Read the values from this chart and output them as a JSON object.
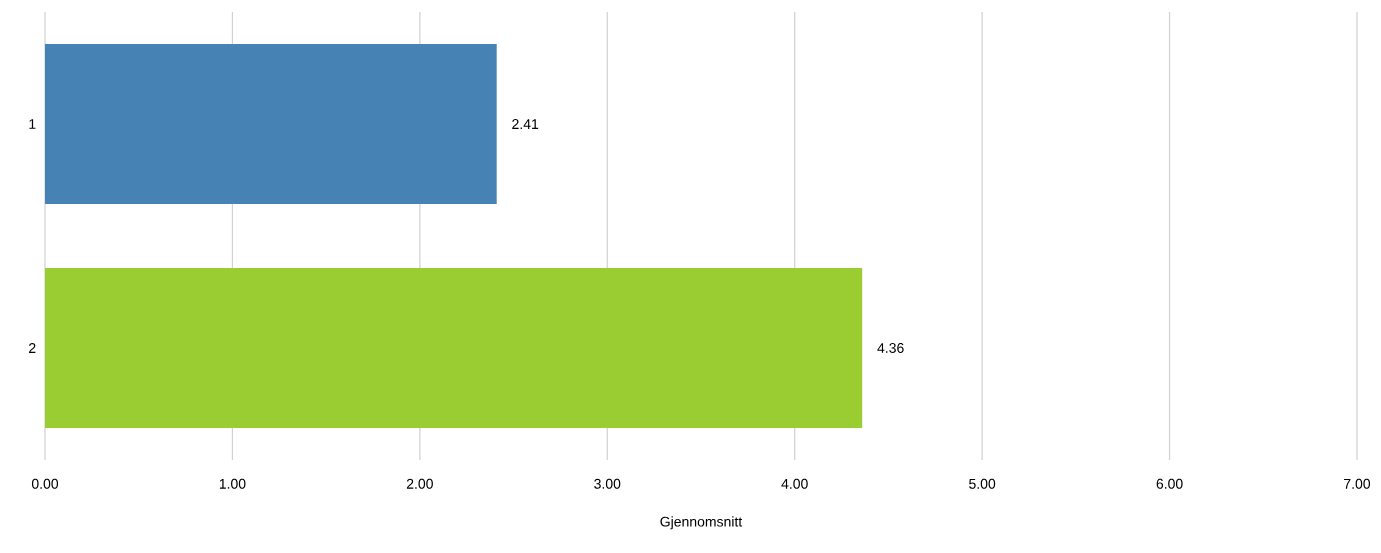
{
  "chart_data": {
    "type": "bar",
    "orientation": "horizontal",
    "xlabel": "Gjennomsnitt",
    "categories": [
      "1",
      "2"
    ],
    "values": [
      2.41,
      4.36
    ],
    "colors": [
      "#4682b4",
      "#9acd32"
    ],
    "xlim": [
      0,
      7
    ],
    "xticks": [
      {
        "value": 0,
        "label": "0.00"
      },
      {
        "value": 1,
        "label": "1.00"
      },
      {
        "value": 2,
        "label": "2.00"
      },
      {
        "value": 3,
        "label": "3.00"
      },
      {
        "value": 4,
        "label": "4.00"
      },
      {
        "value": 5,
        "label": "5.00"
      },
      {
        "value": 6,
        "label": "6.00"
      },
      {
        "value": 7,
        "label": "7.00"
      }
    ],
    "grid": "x",
    "data_labels": true
  }
}
